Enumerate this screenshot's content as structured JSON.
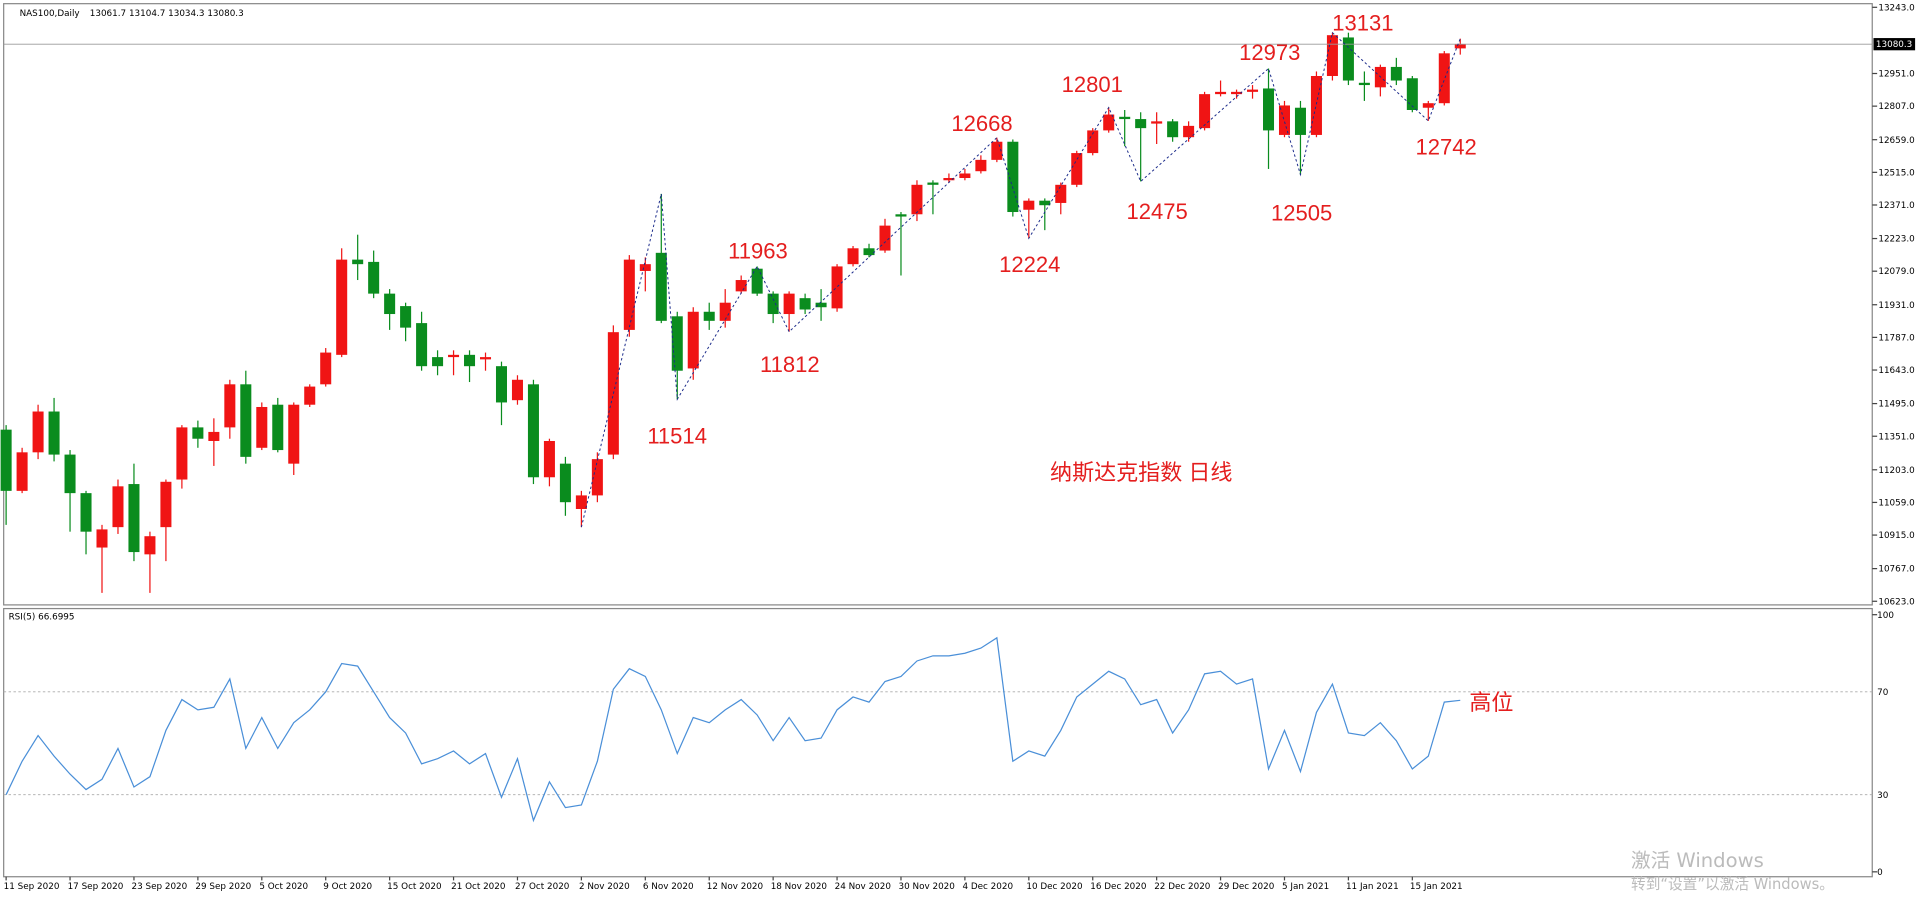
{
  "chart_data": [
    {
      "type": "candlestick",
      "title": "NAS100,Daily",
      "subtitle": "纳斯达克指数 日线",
      "x": [
        "11 Sep 2020",
        null,
        null,
        null,
        "17 Sep 2020",
        null,
        null,
        null,
        "23 Sep 2020",
        null,
        null,
        null,
        "29 Sep 2020",
        null,
        null,
        null,
        "5 Oct 2020",
        null,
        null,
        null,
        "9 Oct 2020",
        null,
        null,
        null,
        "15 Oct 2020",
        null,
        null,
        null,
        "21 Oct 2020",
        null,
        null,
        null,
        "27 Oct 2020",
        null,
        null,
        null,
        "2 Nov 2020",
        null,
        null,
        null,
        "6 Nov 2020",
        null,
        null,
        null,
        "12 Nov 2020",
        null,
        null,
        null,
        "18 Nov 2020",
        null,
        null,
        null,
        "24 Nov 2020",
        null,
        null,
        null,
        "30 Nov 2020",
        null,
        null,
        null,
        "4 Dec 2020",
        null,
        null,
        null,
        "10 Dec 2020",
        null,
        null,
        null,
        "16 Dec 2020",
        null,
        null,
        null,
        "22 Dec 2020",
        null,
        null,
        null,
        "29 Dec 2020",
        null,
        null,
        null,
        "5 Jan 2021",
        null,
        null,
        null,
        "11 Jan 2021",
        null,
        null,
        null,
        "15 Jan 2021",
        null,
        null,
        null
      ],
      "open": [
        11380,
        11110,
        11280,
        11460,
        11270,
        11100,
        10860,
        10950,
        11140,
        10830,
        10950,
        11160,
        11390,
        11330,
        11390,
        11580,
        11300,
        11490,
        11230,
        11490,
        11580,
        11710,
        12130,
        12120,
        11980,
        11925,
        11850,
        11700,
        11700,
        11710,
        11690,
        11660,
        11510,
        11580,
        11170,
        11230,
        11030,
        11090,
        11270,
        11820,
        12080,
        12160,
        11880,
        11650,
        11900,
        11860,
        11990,
        12090,
        11980,
        11890,
        11960,
        11940,
        11915,
        12110,
        12180,
        12170,
        12330,
        12330,
        12470,
        12480,
        12490,
        12520,
        12570,
        12650,
        12350,
        12390,
        12380,
        12460,
        12600,
        12700,
        12760,
        12750,
        12730,
        12740,
        12670,
        12710,
        12860,
        12860,
        12870,
        12885,
        12680,
        12800,
        12680,
        12940,
        13110,
        12910,
        12890,
        12980,
        12930,
        12800,
        12820,
        13061.7
      ],
      "high": [
        11400,
        11300,
        11490,
        11520,
        11290,
        11110,
        10960,
        11160,
        11230,
        10930,
        11160,
        11400,
        11420,
        11430,
        11600,
        11640,
        11500,
        11520,
        11500,
        11580,
        11740,
        12180,
        12240,
        12170,
        12000,
        11940,
        11900,
        11730,
        11730,
        11730,
        11720,
        11680,
        11620,
        11600,
        11340,
        11260,
        11110,
        11280,
        11840,
        12150,
        12140,
        12420,
        11900,
        11920,
        11940,
        12000,
        12060,
        12100,
        11990,
        11990,
        11980,
        12000,
        12110,
        12190,
        12200,
        12310,
        12340,
        12480,
        12480,
        12510,
        12530,
        12590,
        12668,
        12660,
        12400,
        12400,
        12470,
        12610,
        12710,
        12801,
        12790,
        12780,
        12780,
        12750,
        12740,
        12870,
        12920,
        12880,
        12900,
        12973,
        12830,
        12830,
        12960,
        13131,
        13131,
        12960,
        12990,
        13020,
        12940,
        12830,
        13050,
        13104.7
      ],
      "low": [
        10960,
        11100,
        11250,
        11240,
        10930,
        10830,
        10660,
        10920,
        10800,
        10660,
        10800,
        11120,
        11300,
        11220,
        11340,
        11230,
        11290,
        11280,
        11180,
        11480,
        11570,
        11700,
        12040,
        11960,
        11820,
        11770,
        11640,
        11620,
        11620,
        11590,
        11640,
        11400,
        11490,
        11140,
        11130,
        11000,
        10950,
        11060,
        11250,
        11790,
        11990,
        11850,
        11514,
        11600,
        11820,
        11830,
        11980,
        11970,
        11850,
        11812,
        11890,
        11860,
        11900,
        12100,
        12140,
        12160,
        12060,
        12300,
        12330,
        12470,
        12480,
        12510,
        12560,
        12320,
        12224,
        12260,
        12330,
        12450,
        12590,
        12690,
        12630,
        12475,
        12640,
        12650,
        12650,
        12700,
        12850,
        12840,
        12840,
        12530,
        12670,
        12505,
        12670,
        12920,
        12900,
        12830,
        12850,
        12900,
        12780,
        12742,
        12810,
        13034.3
      ],
      "close": [
        11110,
        11280,
        11460,
        11270,
        11100,
        10930,
        10940,
        11130,
        10840,
        10910,
        11150,
        11390,
        11340,
        11370,
        11580,
        11260,
        11480,
        11290,
        11490,
        11570,
        11720,
        12130,
        12110,
        11980,
        11890,
        11830,
        11660,
        11660,
        11710,
        11660,
        11700,
        11500,
        11600,
        11170,
        11330,
        11060,
        11090,
        11250,
        11810,
        12130,
        12110,
        11860,
        11640,
        11900,
        11860,
        11940,
        12040,
        11980,
        11890,
        11980,
        11910,
        11920,
        12100,
        12180,
        12150,
        12280,
        12320,
        12460,
        12460,
        12490,
        12510,
        12570,
        12650,
        12340,
        12390,
        12370,
        12460,
        12600,
        12700,
        12770,
        12750,
        12710,
        12740,
        12670,
        12720,
        12860,
        12870,
        12870,
        12880,
        12700,
        12810,
        12680,
        12940,
        13120,
        12920,
        12900,
        12980,
        12920,
        12790,
        12820,
        13040,
        13080.3
      ],
      "up_color": "#f01414",
      "down_color": "#0a8c1e",
      "ylim": [
        10607,
        13259
      ],
      "yticks": [
        {
          "value": 10623,
          "label": "10623.0"
        },
        {
          "value": 10767,
          "label": "10767.0"
        },
        {
          "value": 10915,
          "label": "10915.0"
        },
        {
          "value": 11059,
          "label": "11059.0"
        },
        {
          "value": 11203,
          "label": "11203.0"
        },
        {
          "value": 11351,
          "label": "11351.0"
        },
        {
          "value": 11495,
          "label": "11495.0"
        },
        {
          "value": 11643,
          "label": "11643.0"
        },
        {
          "value": 11787,
          "label": "11787.0"
        },
        {
          "value": 11931,
          "label": "11931.0"
        },
        {
          "value": 12079,
          "label": "12079.0"
        },
        {
          "value": 12223,
          "label": "12223.0"
        },
        {
          "value": 12371,
          "label": "12371.0"
        },
        {
          "value": 12515,
          "label": "12515.0"
        },
        {
          "value": 12659,
          "label": "12659.0"
        },
        {
          "value": 12807,
          "label": "12807.0"
        },
        {
          "value": 12951,
          "label": "12951.0"
        },
        {
          "value": 13243,
          "label": "13243.0"
        }
      ],
      "annotations": [
        13131,
        12973,
        12801,
        12668,
        11963,
        11812,
        11514,
        12224,
        12475,
        12505,
        12742
      ]
    },
    {
      "type": "line",
      "title": "RSI(5) 66.6995",
      "annotation": "高位",
      "color": "#4a8fd8",
      "values": [
        30,
        43,
        53,
        45,
        38,
        32,
        36,
        48,
        33,
        37,
        55,
        67,
        63,
        64,
        75,
        48,
        60,
        48,
        58,
        63,
        70,
        81,
        80,
        70,
        60,
        54,
        42,
        44,
        47,
        42,
        46,
        29,
        44,
        20,
        35,
        25,
        26,
        43,
        71,
        79,
        76,
        63,
        46,
        60,
        58,
        63,
        67,
        61,
        51,
        60,
        51,
        52,
        63,
        68,
        66,
        74,
        76,
        82,
        84,
        84,
        85,
        87,
        91,
        43,
        47,
        45,
        55,
        68,
        73,
        78,
        75,
        65,
        67,
        54,
        63,
        77,
        78,
        73,
        75,
        40,
        55,
        39,
        62,
        73,
        54,
        53,
        58,
        51,
        40,
        45,
        66,
        66.6995
      ],
      "ylim": [
        0,
        100
      ],
      "yticks": [
        0,
        30,
        70,
        100
      ]
    }
  ],
  "watermark": [
    "激活 Windows",
    "转到“设置”以激活 Windows。"
  ]
}
